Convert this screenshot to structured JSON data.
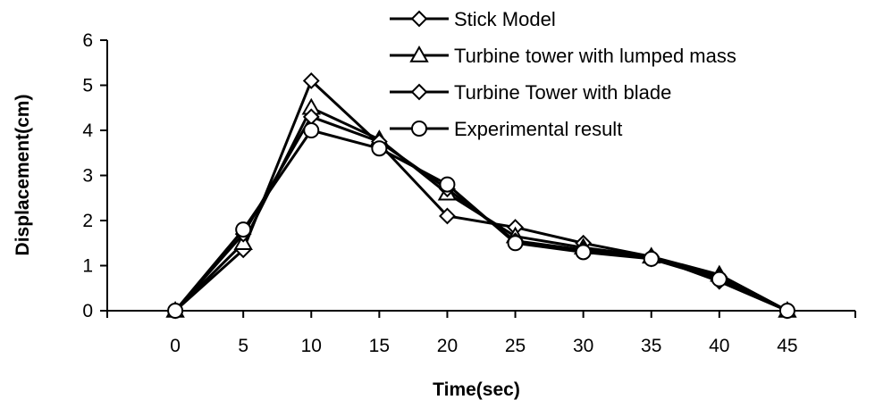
{
  "chart_data": {
    "type": "line",
    "title": "",
    "xlabel": "Time(sec)",
    "ylabel": "Displacement(cm)",
    "x": [
      0,
      5,
      10,
      15,
      20,
      25,
      30,
      35,
      40,
      45
    ],
    "xticks": [
      "0",
      "5",
      "10",
      "15",
      "20",
      "25",
      "30",
      "35",
      "40",
      "45"
    ],
    "yticks": [
      "0",
      "1",
      "2",
      "3",
      "4",
      "5",
      "6"
    ],
    "xlim": [
      -5,
      50
    ],
    "ylim": [
      0,
      6
    ],
    "grid": false,
    "legend_position": "top-right",
    "series": [
      {
        "name": "Stick Model",
        "marker": "diamond",
        "values": [
          0,
          1.35,
          5.1,
          3.7,
          2.1,
          1.85,
          1.5,
          1.2,
          0.65,
          0
        ]
      },
      {
        "name": "Turbine tower with lumped mass",
        "marker": "triangle",
        "values": [
          0,
          1.5,
          4.5,
          3.8,
          2.6,
          1.65,
          1.4,
          1.2,
          0.8,
          0
        ]
      },
      {
        "name": "Turbine Tower with blade",
        "marker": "diamond",
        "values": [
          0,
          1.7,
          4.3,
          3.75,
          2.7,
          1.55,
          1.35,
          1.15,
          0.75,
          0
        ]
      },
      {
        "name": "Experimental result",
        "marker": "circle",
        "values": [
          0,
          1.8,
          4.0,
          3.6,
          2.8,
          1.5,
          1.3,
          1.15,
          0.7,
          0
        ]
      }
    ],
    "colors": {
      "line": "#000000",
      "marker_fill": "#ffffff"
    }
  }
}
